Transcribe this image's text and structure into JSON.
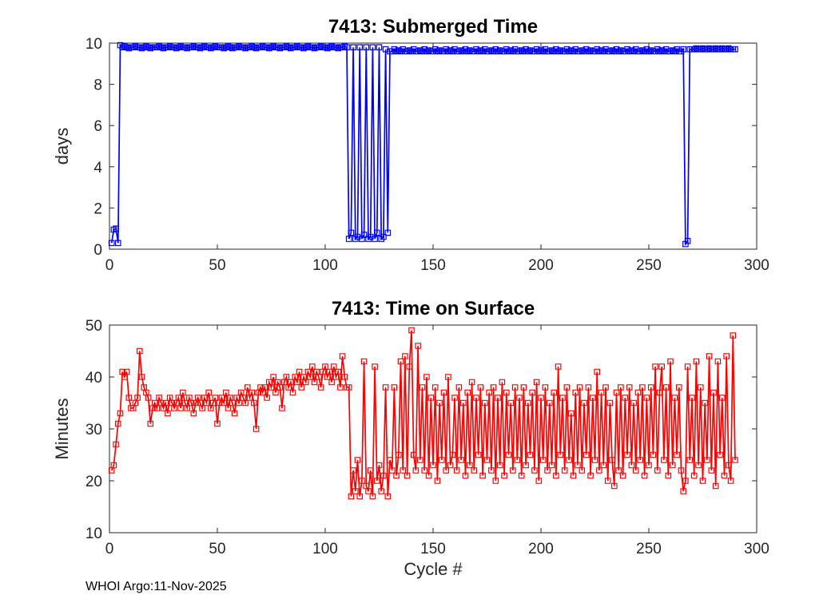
{
  "footer": {
    "text": "WHOI Argo:11-Nov-2025"
  },
  "style": {
    "axis_color": "#262626",
    "title_color": "#000000",
    "background": "#ffffff",
    "submerged_color": "#0000ff",
    "surface_color": "#ff0000"
  },
  "chart_data": [
    {
      "type": "line",
      "title": "7413: Submerged Time",
      "xlabel": "",
      "ylabel": "days",
      "xlim": [
        0,
        300
      ],
      "ylim": [
        0,
        10
      ],
      "xticks": [
        0,
        50,
        100,
        150,
        200,
        250,
        300
      ],
      "yticks": [
        0,
        2,
        4,
        6,
        8,
        10
      ],
      "grid": false,
      "legend": null,
      "x_start": 1,
      "x_step": 1,
      "series": [
        {
          "name": "submerged-days",
          "color": "#0000ff",
          "marker": "square",
          "values": [
            0.3,
            0.95,
            1.0,
            0.3,
            9.9,
            9.8,
            9.85,
            9.8,
            9.75,
            9.8,
            9.8,
            9.85,
            9.8,
            9.8,
            9.75,
            9.8,
            9.85,
            9.8,
            9.75,
            9.8,
            9.8,
            9.8,
            9.85,
            9.8,
            9.75,
            9.8,
            9.8,
            9.85,
            9.8,
            9.8,
            9.75,
            9.8,
            9.85,
            9.8,
            9.8,
            9.75,
            9.8,
            9.8,
            9.85,
            9.8,
            9.8,
            9.75,
            9.8,
            9.85,
            9.8,
            9.8,
            9.75,
            9.8,
            9.85,
            9.8,
            9.8,
            9.8,
            9.75,
            9.8,
            9.85,
            9.8,
            9.75,
            9.8,
            9.8,
            9.85,
            9.8,
            9.8,
            9.75,
            9.8,
            9.8,
            9.85,
            9.8,
            9.75,
            9.8,
            9.8,
            9.85,
            9.8,
            9.8,
            9.75,
            9.8,
            9.85,
            9.8,
            9.8,
            9.75,
            9.8,
            9.8,
            9.85,
            9.8,
            9.75,
            9.8,
            9.8,
            9.85,
            9.8,
            9.8,
            9.75,
            9.8,
            9.85,
            9.8,
            9.8,
            9.75,
            9.8,
            9.8,
            9.85,
            9.8,
            9.8,
            9.75,
            9.8,
            9.85,
            9.8,
            9.8,
            9.75,
            9.8,
            9.8,
            9.85,
            9.8,
            0.5,
            0.8,
            9.8,
            0.5,
            0.6,
            9.8,
            0.5,
            0.7,
            9.8,
            0.5,
            0.6,
            9.8,
            0.5,
            0.8,
            9.8,
            0.5,
            0.6,
            9.7,
            0.8,
            9.6,
            9.6,
            9.7,
            9.6,
            9.65,
            9.6,
            9.7,
            9.6,
            9.6,
            9.65,
            9.6,
            9.7,
            9.6,
            9.6,
            9.65,
            9.6,
            9.7,
            9.6,
            9.65,
            9.6,
            9.6,
            9.7,
            9.6,
            9.65,
            9.6,
            9.6,
            9.7,
            9.6,
            9.65,
            9.6,
            9.7,
            9.6,
            9.6,
            9.65,
            9.6,
            9.7,
            9.6,
            9.65,
            9.6,
            9.6,
            9.7,
            9.6,
            9.65,
            9.6,
            9.7,
            9.6,
            9.6,
            9.65,
            9.6,
            9.7,
            9.6,
            9.65,
            9.6,
            9.6,
            9.7,
            9.6,
            9.65,
            9.6,
            9.7,
            9.6,
            9.6,
            9.65,
            9.6,
            9.7,
            9.6,
            9.65,
            9.6,
            9.6,
            9.7,
            9.6,
            9.65,
            9.6,
            9.7,
            9.6,
            9.6,
            9.65,
            9.6,
            9.7,
            9.6,
            9.65,
            9.6,
            9.6,
            9.7,
            9.6,
            9.65,
            9.6,
            9.7,
            9.6,
            9.6,
            9.65,
            9.6,
            9.7,
            9.6,
            9.65,
            9.6,
            9.6,
            9.7,
            9.6,
            9.65,
            9.6,
            9.7,
            9.6,
            9.6,
            9.65,
            9.6,
            9.7,
            9.6,
            9.65,
            9.6,
            9.6,
            9.7,
            9.6,
            9.65,
            9.6,
            9.7,
            9.6,
            9.6,
            9.65,
            9.6,
            9.7,
            9.6,
            9.65,
            9.6,
            9.6,
            9.7,
            9.6,
            9.65,
            9.6,
            9.7,
            9.6,
            9.6,
            9.65,
            9.6,
            9.7,
            9.6,
            9.6,
            9.7,
            0.25,
            0.4,
            9.7,
            9.7,
            9.7,
            9.75,
            9.7,
            9.7,
            9.75,
            9.7,
            9.7,
            9.75,
            9.7,
            9.7,
            9.75,
            9.7,
            9.7,
            9.75,
            9.7,
            9.7,
            9.75,
            9.7,
            9.7,
            9.7
          ]
        }
      ]
    },
    {
      "type": "line",
      "title": "7413: Time on Surface",
      "xlabel": "Cycle #",
      "ylabel": "Minutes",
      "xlim": [
        0,
        300
      ],
      "ylim": [
        10,
        50
      ],
      "xticks": [
        0,
        50,
        100,
        150,
        200,
        250,
        300
      ],
      "yticks": [
        10,
        20,
        30,
        40,
        50
      ],
      "grid": false,
      "legend": null,
      "x_start": 1,
      "x_step": 1,
      "series": [
        {
          "name": "surface-minutes",
          "color": "#ff0000",
          "marker": "square",
          "values": [
            22,
            23,
            27,
            31,
            33,
            41,
            40,
            41,
            36,
            34,
            34,
            35,
            36,
            45,
            40,
            38,
            37,
            36,
            31,
            34,
            35,
            34,
            36,
            35,
            34,
            35,
            33,
            36,
            35,
            34,
            35,
            36,
            34,
            37,
            35,
            34,
            36,
            35,
            33,
            35,
            36,
            35,
            34,
            36,
            35,
            37,
            34,
            35,
            36,
            31,
            35,
            36,
            35,
            37,
            34,
            36,
            35,
            33,
            36,
            35,
            37,
            36,
            35,
            38,
            36,
            37,
            35,
            30,
            37,
            38,
            37,
            38,
            36,
            39,
            38,
            40,
            37,
            39,
            38,
            34,
            39,
            40,
            38,
            39,
            37,
            40,
            39,
            41,
            38,
            40,
            39,
            41,
            40,
            42,
            39,
            41,
            40,
            38,
            41,
            42,
            40,
            41,
            39,
            42,
            40,
            41,
            38,
            44,
            40,
            38,
            38,
            17,
            22,
            18,
            24,
            17,
            20,
            43,
            19,
            18,
            22,
            17,
            42,
            20,
            23,
            18,
            21,
            38,
            17,
            24,
            22,
            38,
            21,
            25,
            43,
            22,
            44,
            21,
            42,
            49,
            25,
            22,
            46,
            24,
            38,
            22,
            40,
            21,
            36,
            23,
            38,
            20,
            35,
            24,
            37,
            22,
            40,
            23,
            25,
            36,
            22,
            38,
            24,
            35,
            21,
            37,
            23,
            39,
            22,
            36,
            25,
            38,
            21,
            35,
            24,
            37,
            22,
            38,
            20,
            36,
            23,
            39,
            21,
            37,
            25,
            35,
            22,
            38,
            24,
            36,
            21,
            38,
            23,
            35,
            25,
            37,
            22,
            39,
            20,
            36,
            24,
            38,
            22,
            35,
            23,
            37,
            21,
            42,
            25,
            36,
            22,
            38,
            24,
            33,
            21,
            37,
            23,
            38,
            22,
            35,
            25,
            38,
            21,
            36,
            24,
            41,
            22,
            37,
            23,
            38,
            20,
            35,
            24,
            19,
            37,
            22,
            38,
            21,
            36,
            25,
            38,
            23,
            35,
            22,
            37,
            24,
            38,
            21,
            36,
            23,
            38,
            25,
            42,
            22,
            37,
            42,
            24,
            38,
            21,
            43,
            23,
            36,
            25,
            38,
            22,
            18,
            20,
            42,
            24,
            36,
            21,
            43,
            23,
            38,
            20,
            35,
            24,
            44,
            22,
            37,
            19,
            43,
            25,
            36,
            21,
            44,
            23,
            20,
            48,
            24
          ]
        }
      ]
    }
  ]
}
